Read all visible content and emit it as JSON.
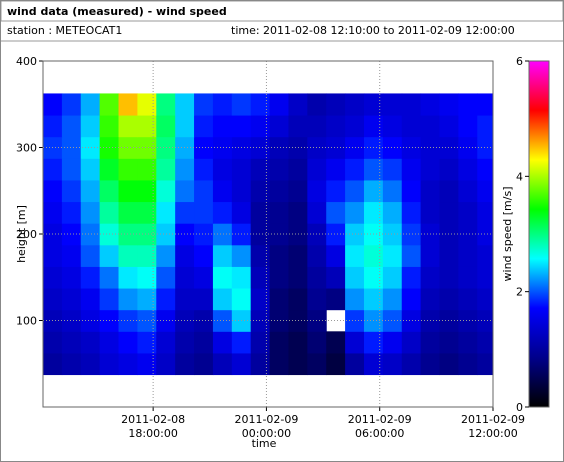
{
  "chart_data": {
    "type": "heatmap",
    "title": "wind data (measured) - wind speed",
    "station": "station : METEOCAT1",
    "period": "time: 2011-02-08 12:10:00 to 2011-02-09 12:00:00",
    "xlabel": "time",
    "ylabel": "height [m]",
    "colorbar_label": "wind speed [m/s]",
    "xlim": [
      "2011-02-08T12:10:00",
      "2011-02-09T12:00:00"
    ],
    "xticks": [
      {
        "value": "2011-02-08T18:00:00",
        "label": [
          "2011-02-08",
          "18:00:00"
        ]
      },
      {
        "value": "2011-02-09T00:00:00",
        "label": [
          "2011-02-09",
          "00:00:00"
        ]
      },
      {
        "value": "2011-02-09T06:00:00",
        "label": [
          "2011-02-09",
          "06:00:00"
        ]
      },
      {
        "value": "2011-02-09T12:00:00",
        "label": [
          "2011-02-09",
          "12:00:00"
        ]
      }
    ],
    "ylim": [
      0,
      400
    ],
    "yticks": [
      100,
      200,
      300,
      400
    ],
    "zlim": [
      0,
      6
    ],
    "zticks": [
      0,
      2,
      4,
      6
    ],
    "grid": true,
    "colormap": [
      "#000000",
      "#00008b",
      "#0000ff",
      "#00ffff",
      "#00ff00",
      "#ffff00",
      "#ff0000",
      "#ff00ff"
    ],
    "x": [
      "2011-02-08T12:10:00",
      "2011-02-08T13:10:00",
      "2011-02-08T14:10:00",
      "2011-02-08T15:10:00",
      "2011-02-08T16:10:00",
      "2011-02-08T17:10:00",
      "2011-02-08T18:10:00",
      "2011-02-08T19:10:00",
      "2011-02-08T20:10:00",
      "2011-02-08T21:10:00",
      "2011-02-08T22:10:00",
      "2011-02-08T23:10:00",
      "2011-02-09T00:10:00",
      "2011-02-09T01:10:00",
      "2011-02-09T02:10:00",
      "2011-02-09T03:10:00",
      "2011-02-09T04:10:00",
      "2011-02-09T05:10:00",
      "2011-02-09T06:10:00",
      "2011-02-09T07:10:00",
      "2011-02-09T08:10:00",
      "2011-02-09T09:10:00",
      "2011-02-09T10:10:00",
      "2011-02-09T11:10:00"
    ],
    "y": [
      50,
      75,
      100,
      125,
      150,
      175,
      200,
      225,
      250,
      275,
      300,
      325,
      350
    ],
    "z": [
      [
        1.0,
        1.1,
        1.2,
        1.4,
        1.5,
        1.6,
        1.3,
        1.0,
        0.9,
        1.2,
        1.4,
        1.0,
        0.6,
        0.5,
        0.6,
        0.4,
        1.0,
        1.4,
        1.3,
        1.1,
        0.9,
        0.8,
        0.9,
        1.0
      ],
      [
        1.1,
        1.2,
        1.3,
        1.5,
        1.7,
        1.8,
        1.4,
        1.1,
        1.0,
        1.5,
        1.8,
        1.1,
        0.6,
        0.5,
        0.7,
        0.5,
        1.4,
        1.8,
        1.6,
        1.3,
        1.0,
        0.9,
        1.0,
        1.1
      ],
      [
        1.2,
        1.3,
        1.5,
        1.7,
        1.9,
        2.0,
        1.6,
        1.2,
        1.1,
        2.0,
        2.4,
        1.2,
        0.7,
        0.6,
        0.8,
        null,
        1.9,
        2.2,
        2.0,
        1.5,
        1.1,
        1.0,
        1.1,
        1.2
      ],
      [
        1.3,
        1.4,
        1.6,
        1.9,
        2.2,
        2.3,
        1.8,
        1.3,
        1.3,
        2.4,
        2.6,
        1.3,
        0.7,
        0.6,
        0.9,
        0.8,
        2.2,
        2.4,
        2.2,
        1.7,
        1.2,
        1.1,
        1.2,
        1.3
      ],
      [
        1.4,
        1.5,
        1.8,
        2.1,
        2.5,
        2.6,
        2.0,
        1.4,
        1.5,
        2.6,
        2.5,
        1.2,
        0.8,
        0.7,
        1.0,
        1.2,
        2.4,
        2.6,
        2.4,
        1.8,
        1.3,
        1.2,
        1.3,
        1.4
      ],
      [
        1.5,
        1.6,
        2.0,
        2.4,
        2.8,
        2.8,
        2.2,
        1.5,
        1.7,
        2.4,
        2.2,
        1.1,
        0.8,
        0.7,
        1.1,
        1.5,
        2.5,
        2.7,
        2.5,
        2.0,
        1.4,
        1.2,
        1.3,
        1.4
      ],
      [
        1.5,
        1.7,
        2.1,
        2.7,
        3.0,
        3.0,
        2.4,
        1.7,
        1.8,
        2.1,
        1.8,
        1.0,
        0.9,
        0.8,
        1.2,
        1.8,
        2.4,
        2.6,
        2.4,
        1.9,
        1.4,
        1.2,
        1.3,
        1.5
      ],
      [
        1.6,
        1.8,
        2.2,
        2.9,
        3.2,
        3.2,
        2.5,
        1.9,
        1.9,
        1.8,
        1.5,
        1.0,
        0.9,
        0.8,
        1.4,
        2.0,
        2.2,
        2.5,
        2.3,
        1.8,
        1.3,
        1.2,
        1.3,
        1.5
      ],
      [
        1.7,
        1.9,
        2.3,
        3.1,
        3.4,
        3.4,
        2.7,
        2.1,
        1.9,
        1.6,
        1.4,
        1.1,
        1.0,
        0.9,
        1.5,
        1.8,
        2.0,
        2.3,
        2.1,
        1.7,
        1.3,
        1.2,
        1.4,
        1.6
      ],
      [
        1.8,
        2.0,
        2.4,
        3.3,
        3.6,
        3.6,
        2.9,
        2.2,
        1.8,
        1.5,
        1.4,
        1.2,
        1.1,
        1.0,
        1.4,
        1.6,
        1.8,
        2.0,
        1.9,
        1.6,
        1.4,
        1.3,
        1.5,
        1.7
      ],
      [
        1.9,
        2.0,
        2.5,
        3.5,
        3.8,
        3.8,
        3.0,
        2.3,
        1.7,
        1.6,
        1.5,
        1.4,
        1.2,
        1.1,
        1.3,
        1.4,
        1.6,
        1.8,
        1.7,
        1.5,
        1.4,
        1.4,
        1.6,
        1.8
      ],
      [
        1.8,
        2.0,
        2.4,
        3.6,
        4.0,
        4.0,
        3.1,
        2.4,
        1.8,
        1.7,
        1.7,
        1.6,
        1.4,
        1.2,
        1.2,
        1.3,
        1.4,
        1.6,
        1.5,
        1.4,
        1.4,
        1.5,
        1.7,
        1.8
      ],
      [
        1.7,
        1.9,
        2.3,
        3.7,
        4.5,
        4.2,
        3.0,
        2.4,
        1.9,
        1.8,
        1.9,
        1.8,
        1.6,
        1.3,
        1.1,
        1.2,
        1.3,
        1.4,
        1.4,
        1.4,
        1.5,
        1.6,
        1.7,
        1.7
      ]
    ]
  }
}
